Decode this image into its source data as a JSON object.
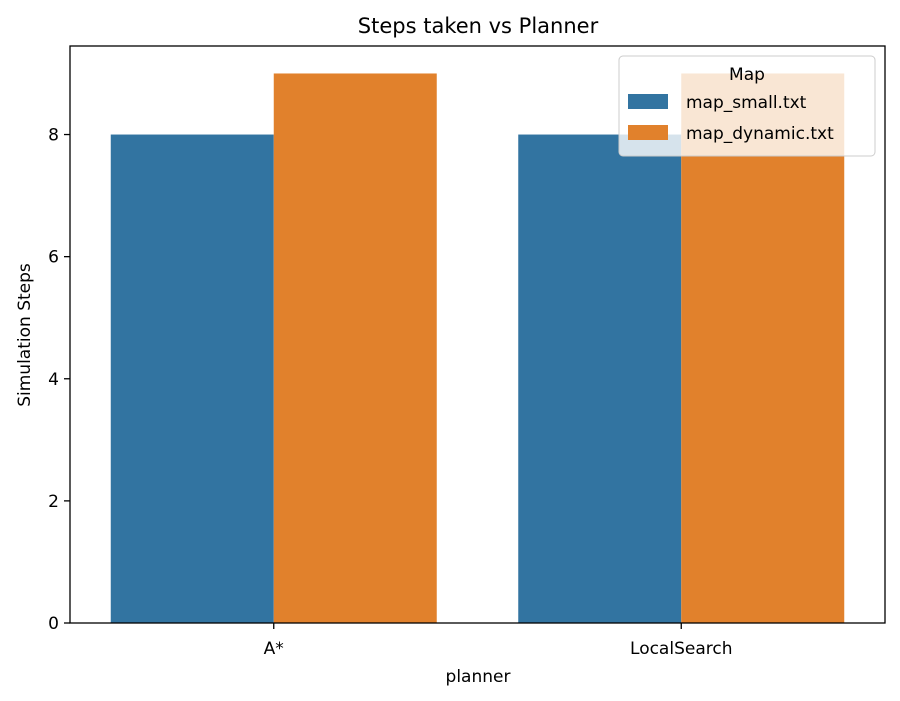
{
  "chart_data": {
    "type": "bar",
    "title": "Steps taken vs Planner",
    "xlabel": "planner",
    "ylabel": "Simulation Steps",
    "categories": [
      "A*",
      "LocalSearch"
    ],
    "series": [
      {
        "name": "map_small.txt",
        "values": [
          8,
          8
        ],
        "color": "#3274a1"
      },
      {
        "name": "map_dynamic.txt",
        "values": [
          9,
          9
        ],
        "color": "#e1812c"
      }
    ],
    "ylim": [
      0,
      9.45
    ],
    "yticks": [
      0,
      2,
      4,
      6,
      8
    ],
    "legend": {
      "title": "Map",
      "placement": "top-right"
    },
    "grid": false
  }
}
